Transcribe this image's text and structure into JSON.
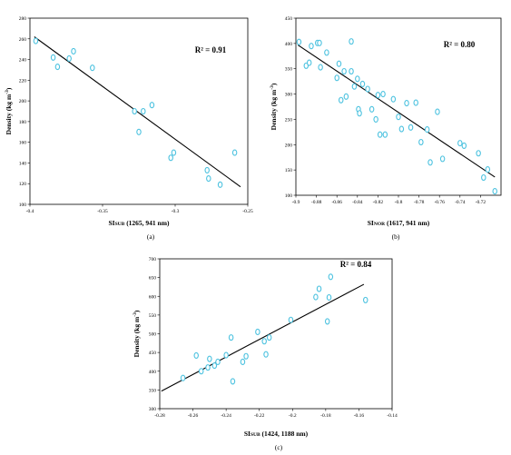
{
  "chart_data": [
    {
      "type": "scatter",
      "caption": "(a)",
      "xlabel_main": "SI",
      "xlabel_sub": "SUB",
      "xlabel_rest": " (1265, 941 nm)",
      "ylabel_text": "Density (kg m",
      "ylabel_sup": "-3",
      "ylabel_end": ")",
      "r2_label": "R² = 0.91",
      "xlim": [
        -0.4,
        -0.25
      ],
      "ylim": [
        100,
        280
      ],
      "x_ticks": [
        -0.4,
        -0.35,
        -0.3,
        -0.25
      ],
      "x_tick_labels": [
        "-0.4",
        "-0.35",
        "-0.3",
        "-0.25"
      ],
      "y_ticks": [
        100,
        120,
        140,
        160,
        180,
        200,
        220,
        240,
        260,
        280
      ],
      "y_tick_labels": [
        "100",
        "120",
        "140",
        "160",
        "180",
        "200",
        "220",
        "240",
        "260",
        "280"
      ],
      "points": [
        [
          -0.396,
          258
        ],
        [
          -0.384,
          242
        ],
        [
          -0.381,
          233
        ],
        [
          -0.373,
          241
        ],
        [
          -0.37,
          248
        ],
        [
          -0.357,
          232
        ],
        [
          -0.328,
          190
        ],
        [
          -0.325,
          170
        ],
        [
          -0.322,
          190
        ],
        [
          -0.316,
          196
        ],
        [
          -0.303,
          145
        ],
        [
          -0.301,
          150
        ],
        [
          -0.278,
          133
        ],
        [
          -0.277,
          125
        ],
        [
          -0.269,
          119
        ],
        [
          -0.259,
          150
        ]
      ],
      "fit": [
        [
          -0.397,
          262
        ],
        [
          -0.255,
          117
        ]
      ],
      "marker_color": "#4fc3e0",
      "line_color": "#000000"
    },
    {
      "type": "scatter",
      "caption": "(b)",
      "xlabel_main": "SI",
      "xlabel_sub": "NOR",
      "xlabel_rest": " (1617, 941 nm)",
      "ylabel_text": "Density (kg m",
      "ylabel_sup": "-3",
      "ylabel_end": ")",
      "r2_label": "R² = 0.80",
      "xlim": [
        -0.9,
        -0.7
      ],
      "ylim": [
        100,
        450
      ],
      "x_ticks": [
        -0.9,
        -0.88,
        -0.86,
        -0.84,
        -0.82,
        -0.8,
        -0.78,
        -0.76,
        -0.74,
        -0.72
      ],
      "x_tick_labels": [
        "-0.9",
        "-0.88",
        "-0.86",
        "-0.84",
        "-0.82",
        "-0.8",
        "-0.78",
        "-0.76",
        "-0.74",
        "-0.72"
      ],
      "y_ticks": [
        100,
        150,
        200,
        250,
        300,
        350,
        400,
        450
      ],
      "y_tick_labels": [
        "100",
        "150",
        "200",
        "250",
        "300",
        "350",
        "400",
        "450"
      ],
      "points": [
        [
          -0.897,
          403
        ],
        [
          -0.89,
          356
        ],
        [
          -0.887,
          362
        ],
        [
          -0.885,
          395
        ],
        [
          -0.879,
          401
        ],
        [
          -0.877,
          401
        ],
        [
          -0.876,
          353
        ],
        [
          -0.87,
          382
        ],
        [
          -0.86,
          332
        ],
        [
          -0.858,
          360
        ],
        [
          -0.856,
          288
        ],
        [
          -0.853,
          345
        ],
        [
          -0.851,
          295
        ],
        [
          -0.846,
          345
        ],
        [
          -0.846,
          404
        ],
        [
          -0.843,
          315
        ],
        [
          -0.84,
          330
        ],
        [
          -0.839,
          270
        ],
        [
          -0.838,
          262
        ],
        [
          -0.835,
          320
        ],
        [
          -0.83,
          310
        ],
        [
          -0.826,
          270
        ],
        [
          -0.822,
          250
        ],
        [
          -0.82,
          298
        ],
        [
          -0.818,
          220
        ],
        [
          -0.815,
          300
        ],
        [
          -0.813,
          220
        ],
        [
          -0.805,
          290
        ],
        [
          -0.8,
          255
        ],
        [
          -0.797,
          231
        ],
        [
          -0.792,
          282
        ],
        [
          -0.788,
          234
        ],
        [
          -0.783,
          283
        ],
        [
          -0.778,
          205
        ],
        [
          -0.772,
          230
        ],
        [
          -0.769,
          165
        ],
        [
          -0.762,
          265
        ],
        [
          -0.757,
          172
        ],
        [
          -0.74,
          203
        ],
        [
          -0.736,
          198
        ],
        [
          -0.722,
          183
        ],
        [
          -0.717,
          135
        ],
        [
          -0.713,
          151
        ],
        [
          -0.706,
          108
        ]
      ],
      "fit": [
        [
          -0.898,
          397
        ],
        [
          -0.706,
          136
        ]
      ],
      "marker_color": "#4fc3e0",
      "line_color": "#000000"
    },
    {
      "type": "scatter",
      "caption": "(c)",
      "xlabel_main": "SI",
      "xlabel_sub": "SUB",
      "xlabel_rest": " (1424, 1188 nm)",
      "ylabel_text": "Density (kg m",
      "ylabel_sup": "-3",
      "ylabel_end": ")",
      "r2_label": "R² = 0.84",
      "xlim": [
        -0.28,
        -0.14
      ],
      "ylim": [
        300,
        700
      ],
      "x_ticks": [
        -0.28,
        -0.26,
        -0.24,
        -0.22,
        -0.2,
        -0.18,
        -0.16,
        -0.14
      ],
      "x_tick_labels": [
        "-0.28",
        "-0.26",
        "-0.24",
        "-0.22",
        "-0.2",
        "-0.18",
        "-0.16",
        "-0.14"
      ],
      "y_ticks": [
        300,
        350,
        400,
        450,
        500,
        550,
        600,
        650,
        700
      ],
      "y_tick_labels": [
        "300",
        "350",
        "400",
        "450",
        "500",
        "550",
        "600",
        "650",
        "700"
      ],
      "points": [
        [
          -0.266,
          382
        ],
        [
          -0.258,
          442
        ],
        [
          -0.255,
          400
        ],
        [
          -0.251,
          410
        ],
        [
          -0.25,
          433
        ],
        [
          -0.247,
          415
        ],
        [
          -0.245,
          425
        ],
        [
          -0.24,
          443
        ],
        [
          -0.237,
          490
        ],
        [
          -0.236,
          373
        ],
        [
          -0.23,
          425
        ],
        [
          -0.228,
          440
        ],
        [
          -0.221,
          505
        ],
        [
          -0.217,
          480
        ],
        [
          -0.216,
          445
        ],
        [
          -0.214,
          490
        ],
        [
          -0.201,
          537
        ],
        [
          -0.186,
          598
        ],
        [
          -0.184,
          620
        ],
        [
          -0.179,
          533
        ],
        [
          -0.178,
          597
        ],
        [
          -0.177,
          652
        ],
        [
          -0.156,
          590
        ]
      ],
      "fit": [
        [
          -0.279,
          347
        ],
        [
          -0.157,
          632
        ]
      ],
      "marker_color": "#4fc3e0",
      "line_color": "#000000"
    }
  ]
}
